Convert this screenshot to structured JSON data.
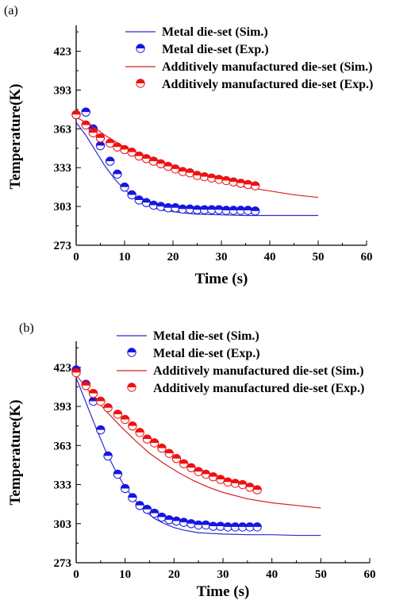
{
  "colors": {
    "metal": "#2b2bd0",
    "metal_marker": "#1616e0",
    "additive": "#d42020",
    "additive_marker": "#ee1111",
    "axis": "#000000"
  },
  "chart_data": [
    {
      "type": "scatter",
      "panel_label": "(a)",
      "xlabel": "Time (s)",
      "ylabel": "Temperature(K)",
      "xlim": [
        0,
        60
      ],
      "ylim": [
        273,
        443
      ],
      "xticks": [
        0,
        10,
        20,
        30,
        40,
        50,
        60
      ],
      "yticks": [
        273,
        303,
        333,
        363,
        393,
        423
      ],
      "grid": false,
      "legend_position": "top-right",
      "series": [
        {
          "name": "Metal die-set (Sim.)",
          "kind": "line",
          "color_key": "metal",
          "x": [
            0,
            2,
            4,
            6,
            8,
            10,
            12,
            14,
            16,
            18,
            20,
            22,
            25,
            30,
            35,
            40,
            45,
            50
          ],
          "y": [
            368,
            358,
            346,
            334,
            324,
            316,
            310,
            305,
            302,
            300,
            299,
            298,
            297,
            296.5,
            296,
            296,
            296,
            296
          ]
        },
        {
          "name": "Metal die-set (Exp.)",
          "kind": "markers",
          "color_key": "metal_marker",
          "x": [
            0,
            2,
            3.5,
            5,
            7,
            8.5,
            10,
            11.5,
            13,
            14.5,
            16,
            17.5,
            19,
            20.5,
            22,
            23.5,
            25,
            26.5,
            28,
            29.5,
            31,
            32.5,
            34,
            35.5,
            37
          ],
          "y": [
            374,
            376,
            363,
            350,
            338,
            328,
            318,
            312,
            308,
            306,
            304,
            303,
            302,
            302,
            301,
            301,
            300.5,
            300.5,
            300.5,
            300.5,
            300,
            300,
            300,
            300,
            299.5
          ]
        },
        {
          "name": "Additively manufactured die-set (Sim.)",
          "kind": "line",
          "color_key": "additive",
          "x": [
            0,
            3,
            6,
            9,
            12,
            15,
            18,
            21,
            24,
            27,
            30,
            35,
            40,
            45,
            50
          ],
          "y": [
            372,
            366,
            358,
            351,
            345,
            340,
            336,
            332,
            328,
            325,
            322,
            318,
            315,
            312,
            310
          ]
        },
        {
          "name": "Additively manufactured die-set (Exp.)",
          "kind": "markers",
          "color_key": "additive_marker",
          "x": [
            0,
            2,
            3.5,
            5,
            7,
            8.5,
            10,
            11.5,
            13,
            14.5,
            16,
            17.5,
            19,
            20.5,
            22,
            23.5,
            25,
            26.5,
            28,
            29.5,
            31,
            32.5,
            34,
            35.5,
            37
          ],
          "y": [
            374,
            366,
            360,
            356,
            352,
            349,
            347,
            345,
            342,
            340,
            338,
            336,
            334,
            332,
            330,
            329,
            327,
            326,
            325,
            324,
            323,
            322,
            321,
            320,
            319
          ]
        }
      ]
    },
    {
      "type": "scatter",
      "panel_label": "(b)",
      "xlabel": "Time (s)",
      "ylabel": "Temperature(K)",
      "xlim": [
        0,
        60
      ],
      "ylim": [
        273,
        443
      ],
      "xticks": [
        0,
        10,
        20,
        30,
        40,
        50,
        60
      ],
      "yticks": [
        273,
        303,
        333,
        363,
        393,
        423
      ],
      "grid": false,
      "legend_position": "top-right",
      "series": [
        {
          "name": "Metal die-set (Sim.)",
          "kind": "line",
          "color_key": "metal",
          "x": [
            0,
            2,
            4,
            6,
            8,
            10,
            12,
            14,
            16,
            18,
            20,
            22,
            25,
            30,
            35,
            40,
            45,
            50
          ],
          "y": [
            415,
            396,
            377,
            359,
            344,
            331,
            321,
            313,
            307,
            303,
            300,
            298,
            296,
            295,
            294.5,
            294.5,
            294,
            294
          ]
        },
        {
          "name": "Metal die-set (Exp.)",
          "kind": "markers",
          "color_key": "metal_marker",
          "x": [
            0,
            2,
            3.5,
            5,
            6.5,
            8.5,
            10,
            11.5,
            13,
            14.5,
            16,
            17.5,
            19,
            20.5,
            22,
            23.5,
            25,
            26.5,
            28,
            29.5,
            31,
            32.5,
            34,
            35.5,
            37
          ],
          "y": [
            421,
            410,
            397,
            375,
            355,
            341,
            330,
            323,
            317,
            314,
            311,
            308,
            306,
            305,
            304,
            303,
            302,
            302,
            301,
            301,
            300.5,
            300.5,
            300.5,
            300.5,
            300.5
          ]
        },
        {
          "name": "Additively manufactured die-set (Sim.)",
          "kind": "line",
          "color_key": "additive",
          "x": [
            0,
            3,
            6,
            9,
            12,
            15,
            18,
            21,
            24,
            27,
            30,
            35,
            40,
            45,
            50
          ],
          "y": [
            417,
            403,
            390,
            378,
            367,
            357,
            349,
            342,
            336,
            331,
            327,
            322,
            319,
            317,
            315
          ]
        },
        {
          "name": "Additively manufactured die-set (Exp.)",
          "kind": "markers",
          "color_key": "additive_marker",
          "x": [
            0,
            2,
            3.5,
            5,
            6.5,
            8.5,
            10,
            11.5,
            13,
            14.5,
            16,
            17.5,
            19,
            20.5,
            22,
            23.5,
            25,
            26.5,
            28,
            29.5,
            31,
            32.5,
            34,
            35.5,
            37
          ],
          "y": [
            419,
            409,
            403,
            397,
            392,
            387,
            383,
            378,
            373,
            368,
            365,
            361,
            357,
            353,
            349,
            346,
            343,
            341,
            339,
            337,
            335,
            334,
            333,
            331,
            329
          ]
        }
      ]
    }
  ]
}
